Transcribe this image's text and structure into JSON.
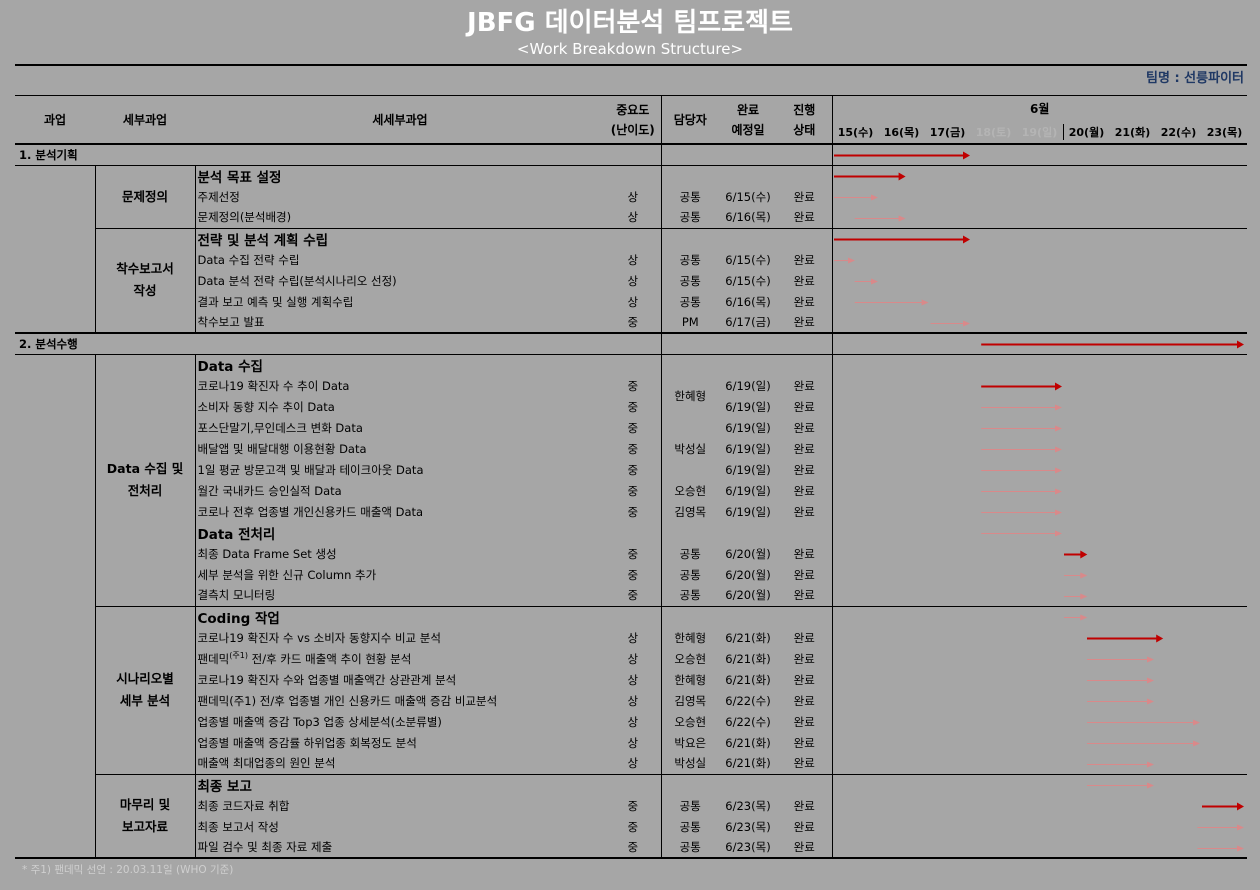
{
  "header": {
    "title": "JBFG 데이터분석 팀프로젝트",
    "subtitle": "<Work Breakdown Structure>",
    "team": "팀명 : 선릉파이터"
  },
  "columns": {
    "phase": "과업",
    "subphase": "세부과업",
    "task": "세세부과업",
    "importance_line1": "중요도",
    "importance_line2": "(난이도)",
    "owner": "담당자",
    "due_line1": "완료",
    "due_line2": "예정일",
    "status_line1": "진행",
    "status_line2": "상태",
    "month": "6월",
    "dates": [
      "15(수)",
      "16(목)",
      "17(금)",
      "18(토)",
      "19(일)",
      "20(월)",
      "21(화)",
      "22(수)",
      "23(목)"
    ]
  },
  "colors": {
    "background": "#a6a6a6",
    "arrow_main": "#c00000",
    "arrow_sub": "#d9898a",
    "title": "#ffffff",
    "team": "#1f3864"
  },
  "rows": [
    {
      "type": "phase",
      "label": "1. 분석기획",
      "bar": [
        0,
        3.0
      ],
      "bar_style": "main"
    },
    {
      "type": "header",
      "label": "분석 목표 설정",
      "bar": [
        0,
        1.6
      ],
      "bar_style": "main"
    },
    {
      "type": "task",
      "label": "주제선정",
      "importance": "상",
      "owner": "공통",
      "due": "6/15(수)",
      "status": "완료",
      "bar": [
        0,
        1.0
      ],
      "bar_style": "sub"
    },
    {
      "type": "task",
      "label": "문제정의(분석배경)",
      "importance": "상",
      "owner": "공통",
      "due": "6/16(목)",
      "status": "완료",
      "bar": [
        0.45,
        1.6
      ],
      "bar_style": "sub"
    },
    {
      "type": "header",
      "label": "전략 및 분석 계획 수립",
      "bar": [
        0,
        3.0
      ],
      "bar_style": "main"
    },
    {
      "type": "task",
      "label": "Data 수집 전략 수립",
      "importance": "상",
      "owner": "공통",
      "due": "6/15(수)",
      "status": "완료",
      "bar": [
        0,
        0.5
      ],
      "bar_style": "sub"
    },
    {
      "type": "task",
      "label": "Data 분석 전략 수립(분석시나리오 선정)",
      "importance": "상",
      "owner": "공통",
      "due": "6/15(수)",
      "status": "완료",
      "bar": [
        0.45,
        1.0
      ],
      "bar_style": "sub"
    },
    {
      "type": "task",
      "label": "결과 보고 예측 및 실행 계획수립",
      "importance": "상",
      "owner": "공통",
      "due": "6/16(목)",
      "status": "완료",
      "bar": [
        0.45,
        2.1
      ],
      "bar_style": "sub"
    },
    {
      "type": "task",
      "label": "착수보고 발표",
      "importance": "중",
      "owner": "PM",
      "due": "6/17(금)",
      "status": "완료",
      "bar": [
        2.1,
        3.0
      ],
      "bar_style": "sub"
    },
    {
      "type": "phase",
      "label": "2. 분석수행",
      "bar": [
        3.2,
        9.2
      ],
      "bar_style": "main"
    },
    {
      "type": "header",
      "label": "Data 수집",
      "bar": null
    },
    {
      "type": "task",
      "label": "코로나19 확진자 수 추이 Data",
      "importance": "중",
      "owner": "",
      "due": "6/19(일)",
      "status": "완료",
      "bar": [
        3.2,
        5.0
      ],
      "bar_style": "main"
    },
    {
      "type": "task",
      "label": "소비자 동향 지수 추이 Data",
      "importance": "중",
      "owner": "",
      "due": "6/19(일)",
      "status": "완료",
      "bar": [
        3.2,
        5.0
      ],
      "bar_style": "sub"
    },
    {
      "type": "task",
      "label": "포스단말기,무인데스크 변화 Data",
      "importance": "중",
      "owner": "",
      "due": "6/19(일)",
      "status": "완료",
      "bar": [
        3.2,
        5.0
      ],
      "bar_style": "sub"
    },
    {
      "type": "task",
      "label": "배달앱 및 배달대행 이용현황 Data",
      "importance": "중",
      "owner": "",
      "due": "6/19(일)",
      "status": "완료",
      "bar": [
        3.2,
        5.0
      ],
      "bar_style": "sub"
    },
    {
      "type": "task",
      "label": "1일 평균 방문고객 및 배달과 테이크아웃 Data",
      "importance": "중",
      "owner": "",
      "due": "6/19(일)",
      "status": "완료",
      "bar": [
        3.2,
        5.0
      ],
      "bar_style": "sub"
    },
    {
      "type": "task",
      "label": "월간 국내카드 승인실적 Data",
      "importance": "중",
      "owner": "오승현",
      "due": "6/19(일)",
      "status": "완료",
      "bar": [
        3.2,
        5.0
      ],
      "bar_style": "sub"
    },
    {
      "type": "task",
      "label": "코로나 전후 업종별 개인신용카드 매출액 Data",
      "importance": "중",
      "owner": "김영목",
      "due": "6/19(일)",
      "status": "완료",
      "bar": [
        3.2,
        5.0
      ],
      "bar_style": "sub"
    },
    {
      "type": "header",
      "label": "Data 전처리",
      "bar": [
        3.2,
        5.0
      ],
      "bar_style": "sub"
    },
    {
      "type": "task",
      "label": "최종 Data Frame Set 생성",
      "importance": "중",
      "owner": "공통",
      "due": "6/20(월)",
      "status": "완료",
      "bar": [
        5.0,
        5.55
      ],
      "bar_style": "main"
    },
    {
      "type": "task",
      "label": "세부 분석을 위한 신규 Column 추가",
      "importance": "중",
      "owner": "공통",
      "due": "6/20(월)",
      "status": "완료",
      "bar": [
        5.0,
        5.55
      ],
      "bar_style": "sub"
    },
    {
      "type": "task",
      "label": "결측치 모니터링",
      "importance": "중",
      "owner": "공통",
      "due": "6/20(월)",
      "status": "완료",
      "bar": [
        5.0,
        5.55
      ],
      "bar_style": "sub"
    },
    {
      "type": "header",
      "label": "Coding 작업",
      "bar": [
        5.0,
        5.55
      ],
      "bar_style": "sub"
    },
    {
      "type": "task",
      "label": "코로나19 확진자 수 vs 소비자 동향지수 비교 분석",
      "importance": "상",
      "owner": "한혜형",
      "due": "6/21(화)",
      "status": "완료",
      "bar": [
        5.5,
        7.2
      ],
      "bar_style": "main"
    },
    {
      "type": "task",
      "label": "팬데믹(주1) 전/후 카드 매출액 추이 현황 분석",
      "label_main": "팬데믹",
      "label_sup": "(주1)",
      "label_rest": " 전/후 카드 매출액 추이 현황 분석",
      "importance": "상",
      "owner": "오승현",
      "due": "6/21(화)",
      "status": "완료",
      "bar": [
        5.5,
        7.0
      ],
      "bar_style": "sub"
    },
    {
      "type": "task",
      "label": "코로나19 확진자 수와 업종별 매출액간 상관관계 분석",
      "importance": "상",
      "owner": "한혜형",
      "due": "6/21(화)",
      "status": "완료",
      "bar": [
        5.5,
        7.0
      ],
      "bar_style": "sub"
    },
    {
      "type": "task",
      "label": "팬데믹(주1) 전/후 업종별 개인 신용카드 매출액 증감 비교분석",
      "importance": "상",
      "owner": "김영목",
      "due": "6/22(수)",
      "status": "완료",
      "bar": [
        5.5,
        7.0
      ],
      "bar_style": "sub"
    },
    {
      "type": "task",
      "label": "업종별 매출액 증감 Top3 업종 상세분석(소분류별)",
      "importance": "상",
      "owner": "오승현",
      "due": "6/22(수)",
      "status": "완료",
      "bar": [
        5.5,
        8.0
      ],
      "bar_style": "sub"
    },
    {
      "type": "task",
      "label": "업종별 매출액 증감률 하위업종 회복정도 분석",
      "importance": "상",
      "owner": "박요은",
      "due": "6/21(화)",
      "status": "완료",
      "bar": [
        5.5,
        8.0
      ],
      "bar_style": "sub"
    },
    {
      "type": "task",
      "label": "매출액 최대업종의 원인 분석",
      "importance": "상",
      "owner": "박성실",
      "due": "6/21(화)",
      "status": "완료",
      "bar": [
        5.5,
        7.0
      ],
      "bar_style": "sub"
    },
    {
      "type": "header",
      "label": "최종 보고",
      "bar": [
        5.5,
        7.0
      ],
      "bar_style": "sub"
    },
    {
      "type": "task",
      "label": "최종 코드자료 취합",
      "importance": "중",
      "owner": "공통",
      "due": "6/23(목)",
      "status": "완료",
      "bar": [
        8.0,
        9.0
      ],
      "bar_style": "main"
    },
    {
      "type": "task",
      "label": "최종 보고서 작성",
      "importance": "중",
      "owner": "공통",
      "due": "6/23(목)",
      "status": "완료",
      "bar": [
        7.9,
        9.2
      ],
      "bar_style": "sub"
    },
    {
      "type": "task",
      "label": "파일 검수 및 최종 자료 제출",
      "importance": "중",
      "owner": "공통",
      "due": "6/23(목)",
      "status": "완료",
      "bar": [
        7.9,
        9.2
      ],
      "bar_style": "sub"
    }
  ],
  "groups": {
    "problem": "문제정의",
    "kickoff_line1": "착수보고서",
    "kickoff_line2": "작성",
    "data_line1": "Data 수집 및",
    "data_line2": "전처리",
    "scenario_line1": "시나리오별",
    "scenario_line2": "세부 분석",
    "final_line1": "마무리 및",
    "final_line2": "보고자료",
    "owner_hhh": "한혜형",
    "owner_pss": "박성실"
  },
  "footnote": "* 주1) 팬데믹 선언 : 20.03.11일 (WHO 기준)"
}
